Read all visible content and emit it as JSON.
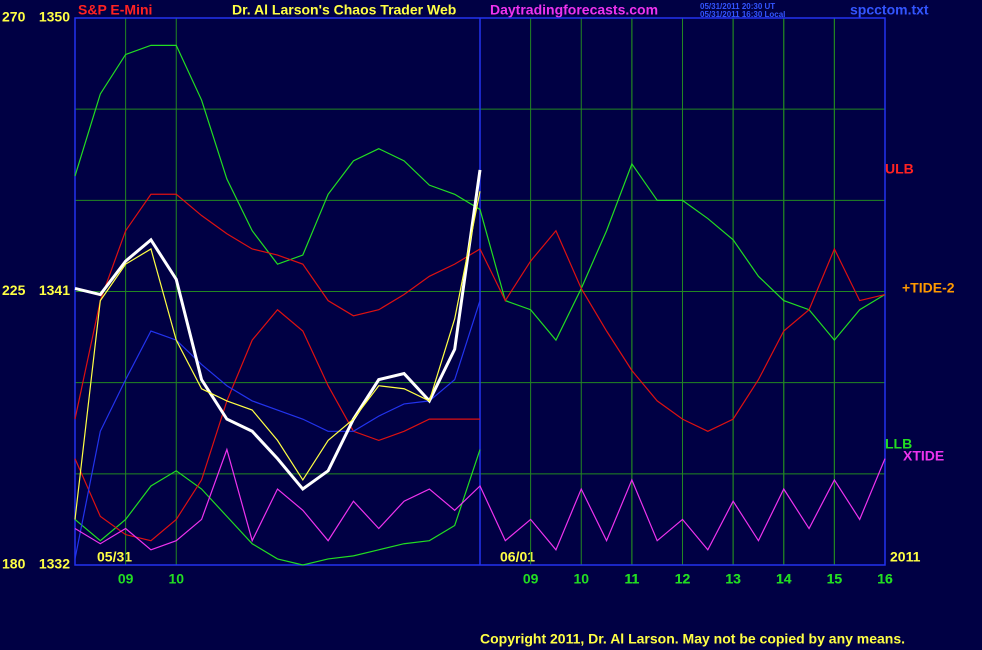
{
  "chart_data": {
    "type": "line",
    "title": "Dr. Al Larson's Chaos Trader Web",
    "symbol": "S&P E-Mini",
    "site": "Daytradingforecasts.com",
    "timestamps": [
      "05/31/2011 20:30 UT",
      "05/31/2011 16:30 Local"
    ],
    "file": "spcctom.txt",
    "copyright": "Copyright 2011, Dr. Al Larson. May not be copied by any means.",
    "date_labels": [
      "05/31",
      "06/01",
      "2011"
    ],
    "right_labels": [
      "ULB",
      "+TIDE-2",
      "LLB",
      "XTIDE"
    ],
    "x": [
      0,
      0.5,
      1,
      1.5,
      2,
      2.5,
      3,
      3.5,
      4,
      4.5,
      5,
      5.5,
      6,
      6.5,
      7,
      7.5,
      8,
      8.5,
      9,
      9.5,
      10,
      10.5,
      11,
      11.5,
      12,
      12.5,
      13,
      13.5,
      14,
      14.5,
      15,
      15.5,
      16
    ],
    "xlim": [
      0,
      16
    ],
    "xticks": [
      {
        "value": 1,
        "label": "09"
      },
      {
        "value": 2,
        "label": "10"
      },
      11,
      12,
      13,
      14,
      15,
      16,
      {
        "value": 9,
        "label": "09"
      },
      {
        "value": 10,
        "label": "10"
      },
      {
        "value": 11,
        "label": "11"
      },
      {
        "value": 12,
        "label": "12"
      },
      {
        "value": 13,
        "label": "13"
      },
      {
        "value": 14,
        "label": "14"
      },
      {
        "value": 15,
        "label": "15"
      },
      {
        "value": 16,
        "label": "16"
      }
    ],
    "ylim": [
      1332,
      1350
    ],
    "yticks": [
      1332,
      1341,
      1350
    ],
    "ygrid": [
      1332,
      1335,
      1338,
      1341,
      1344,
      1347,
      1350
    ],
    "y2lim": [
      180,
      270
    ],
    "y2ticks": [
      180,
      225,
      270
    ],
    "day_break": 8,
    "grid": true,
    "series": [
      {
        "name": "LLB",
        "color": "#22dd22",
        "values": [
          1344.8,
          1347.5,
          1348.8,
          1349.1,
          1349.1,
          1347.3,
          1344.7,
          1343.0,
          1341.9,
          1342.2,
          1344.2,
          1345.3,
          1345.7,
          1345.3,
          1344.5,
          1344.2,
          1343.7,
          1340.7,
          1340.4,
          1339.4,
          1341.1,
          1343.0,
          1345.2,
          1344.0,
          1344.0,
          1343.4,
          1342.7,
          1341.5,
          1340.7,
          1340.4,
          1339.4,
          1340.4,
          1340.9
        ]
      },
      {
        "name": "ULB",
        "color": "#dd1111",
        "values": [
          1336.8,
          1340.7,
          1343.0,
          1344.2,
          1344.2,
          1343.5,
          1342.9,
          1342.4,
          1342.2,
          1341.9,
          1340.7,
          1340.2,
          1340.4,
          1340.9,
          1341.5,
          1341.9,
          1342.4,
          1340.7,
          1342.0,
          1343.0,
          1341.1,
          1339.7,
          1338.4,
          1337.4,
          1336.8,
          1336.4,
          1336.8,
          1338.1,
          1339.7,
          1340.4,
          1342.4,
          1340.7,
          1340.9
        ]
      },
      {
        "color": "#22dd22",
        "values": [
          1333.5,
          1332.8,
          1333.5,
          1334.6,
          1335.1,
          1334.5,
          1333.6,
          1332.7,
          1332.2,
          1332.0,
          1332.2,
          1332.3,
          1332.5,
          1332.7,
          1332.8,
          1333.3,
          1335.8,
          null,
          null,
          null,
          null,
          null,
          null,
          null,
          null,
          null,
          null,
          null,
          null,
          null,
          null,
          null,
          null
        ]
      },
      {
        "color": "#dd1111",
        "values": [
          1335.5,
          1333.6,
          1333.0,
          1332.8,
          1333.5,
          1334.8,
          1337.4,
          1339.4,
          1340.4,
          1339.7,
          1337.9,
          1336.4,
          1336.1,
          1336.4,
          1336.8,
          1336.8,
          1336.8,
          null,
          null,
          null,
          null,
          null,
          null,
          null,
          null,
          null,
          null,
          null,
          null,
          null,
          null,
          null,
          null
        ]
      },
      {
        "color": "#2233ee",
        "values": [
          1332.2,
          1336.4,
          1338.1,
          1339.7,
          1339.4,
          1338.6,
          1337.9,
          1337.4,
          1337.1,
          1336.8,
          1336.4,
          1336.4,
          1336.9,
          1337.3,
          1337.4,
          1338.1,
          1340.7,
          null,
          null,
          null,
          null,
          null,
          null,
          null,
          null,
          null,
          null,
          null,
          null,
          null,
          null,
          null,
          null
        ]
      },
      {
        "color": "#ffffff",
        "values": [
          1341.1,
          1340.9,
          1342.0,
          1342.7,
          1341.4,
          1338.1,
          1336.8,
          1336.4,
          1335.5,
          1334.5,
          1335.1,
          1336.8,
          1338.1,
          1338.3,
          1337.4,
          1339.1,
          1345.0,
          null,
          null,
          null,
          null,
          null,
          null,
          null,
          null,
          null,
          null,
          null,
          null,
          null,
          null,
          null,
          null
        ]
      },
      {
        "color": "#ffff44",
        "values": [
          1333.5,
          1340.7,
          1341.9,
          1342.4,
          1339.4,
          1337.8,
          1337.4,
          1337.1,
          1336.1,
          1334.8,
          1336.1,
          1336.8,
          1337.9,
          1337.8,
          1337.4,
          1340.1,
          1344.3,
          null,
          null,
          null,
          null,
          null,
          null,
          null,
          null,
          null,
          null,
          null,
          null,
          null,
          null,
          null,
          null
        ]
      },
      {
        "name": "XTIDE",
        "color": "#ee33ee",
        "values": [
          1333.2,
          1332.7,
          1333.2,
          1332.5,
          1332.8,
          1333.5,
          1335.8,
          1332.8,
          1334.5,
          1333.8,
          1332.8,
          1334.1,
          1333.2,
          1334.1,
          1334.5,
          1333.8,
          1334.6,
          1332.8,
          1333.5,
          1332.5,
          1334.5,
          1332.8,
          1334.8,
          1332.8,
          1333.5,
          1332.5,
          1334.1,
          1332.8,
          1334.5,
          1333.2,
          1334.8,
          1333.5,
          1335.5
        ]
      }
    ]
  }
}
